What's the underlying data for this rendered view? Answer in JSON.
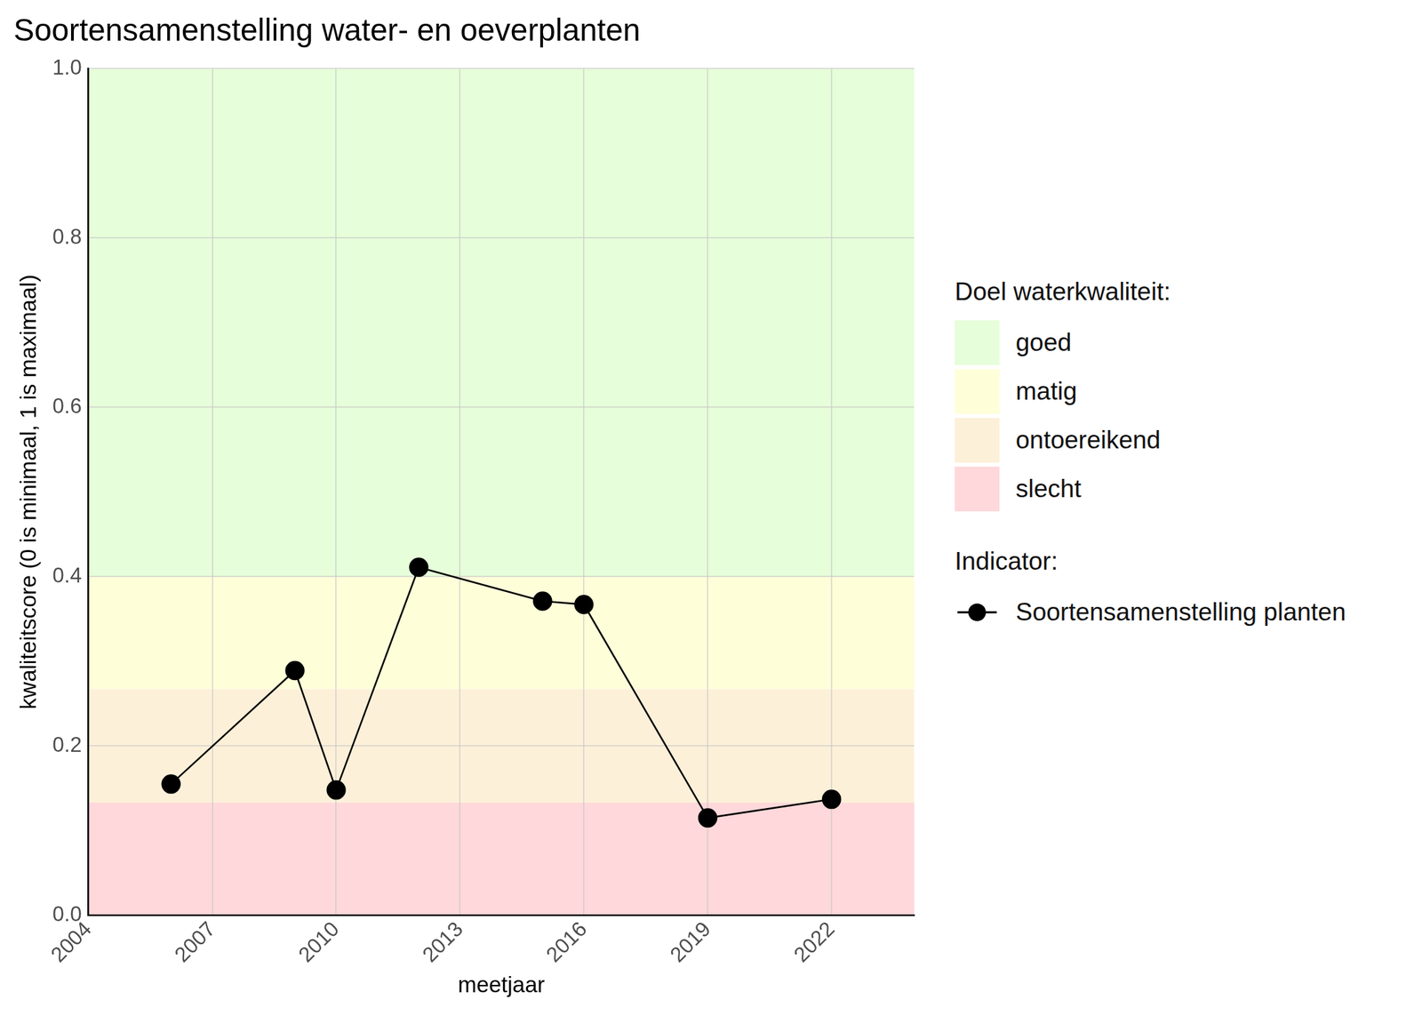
{
  "chart_data": {
    "type": "line",
    "title": "Soortensamenstelling water- en oeverplanten",
    "x_label": "meetjaar",
    "y_label": "kwaliteitscore (0 is minimaal, 1 is maximaal)",
    "x": [
      2006,
      2009,
      2010,
      2012,
      2015,
      2016,
      2019,
      2022
    ],
    "series": [
      {
        "name": "Soortensamenstelling planten",
        "color": "#000000",
        "marker": "circle",
        "line_style": "solid",
        "values": [
          0.155,
          0.289,
          0.148,
          0.411,
          0.371,
          0.367,
          0.115,
          0.137
        ]
      }
    ],
    "xlim": [
      2004,
      2024
    ],
    "xticks": [
      2004,
      2007,
      2010,
      2013,
      2016,
      2019,
      2022
    ],
    "ylim": [
      0,
      1
    ],
    "yticks": [
      {
        "value": 0,
        "label": "0.0"
      },
      0.2,
      0.4,
      0.6,
      0.8,
      {
        "value": 1,
        "label": "1.0"
      }
    ],
    "grid": true,
    "legend": "right",
    "band_legend_title": "Doel waterkwaliteit:",
    "series_legend_title": "Indicator:",
    "bands": [
      {
        "name": "goed",
        "from": 0.4,
        "to": 1.0,
        "color": "#e6fed9"
      },
      {
        "name": "matig",
        "from": 0.267,
        "to": 0.4,
        "color": "#fefed9"
      },
      {
        "name": "ontoereikend",
        "from": 0.133,
        "to": 0.267,
        "color": "#fdf0d9"
      },
      {
        "name": "slecht",
        "from": 0,
        "to": 0.133,
        "color": "#fed8da"
      }
    ]
  }
}
